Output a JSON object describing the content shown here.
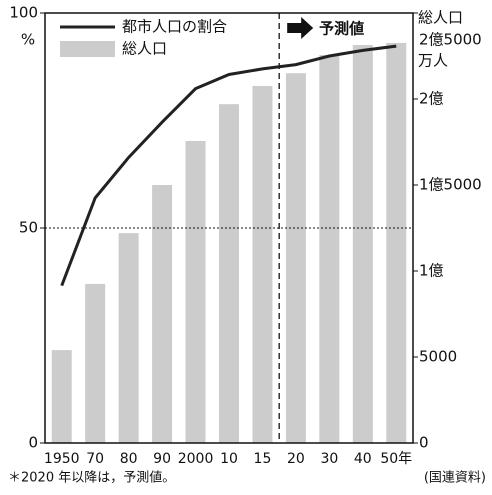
{
  "chart_data": {
    "type": "bar_line",
    "categories": [
      "1950",
      "70",
      "80",
      "90",
      "2000",
      "10",
      "15",
      "20",
      "30",
      "40",
      "50年"
    ],
    "series": [
      {
        "name": "都市人口の割合",
        "type": "line",
        "color": "#222222",
        "axis": "y",
        "values": [
          36.6,
          57,
          66.4,
          74.6,
          82.4,
          85.7,
          87,
          88,
          90,
          91.3,
          92.3
        ]
      },
      {
        "name": "総人口",
        "type": "bar",
        "color": "#cccccc",
        "axis": "y2",
        "values": [
          5400,
          9250,
          12200,
          15000,
          17560,
          19700,
          20760,
          21500,
          22560,
          23140,
          23260
        ]
      }
    ],
    "ylim": [
      0,
      100
    ],
    "yticks": [
      0,
      50,
      100
    ],
    "y_unit": "%",
    "hline": 50,
    "y2lim": [
      0,
      25000
    ],
    "y2ticks": [
      0,
      5000,
      {
        "value": 10000,
        "label": "1億"
      },
      {
        "value": 15000,
        "label": "1億5000"
      },
      {
        "value": 20000,
        "label": "2億"
      },
      {
        "value": 25000,
        "label": "2億5000"
      }
    ],
    "y2label": "総人口",
    "y2_unit": "万人",
    "annotation": "予測値",
    "footnote": "＊2020 年以降は，予測値。",
    "source": "(国連資料)"
  }
}
